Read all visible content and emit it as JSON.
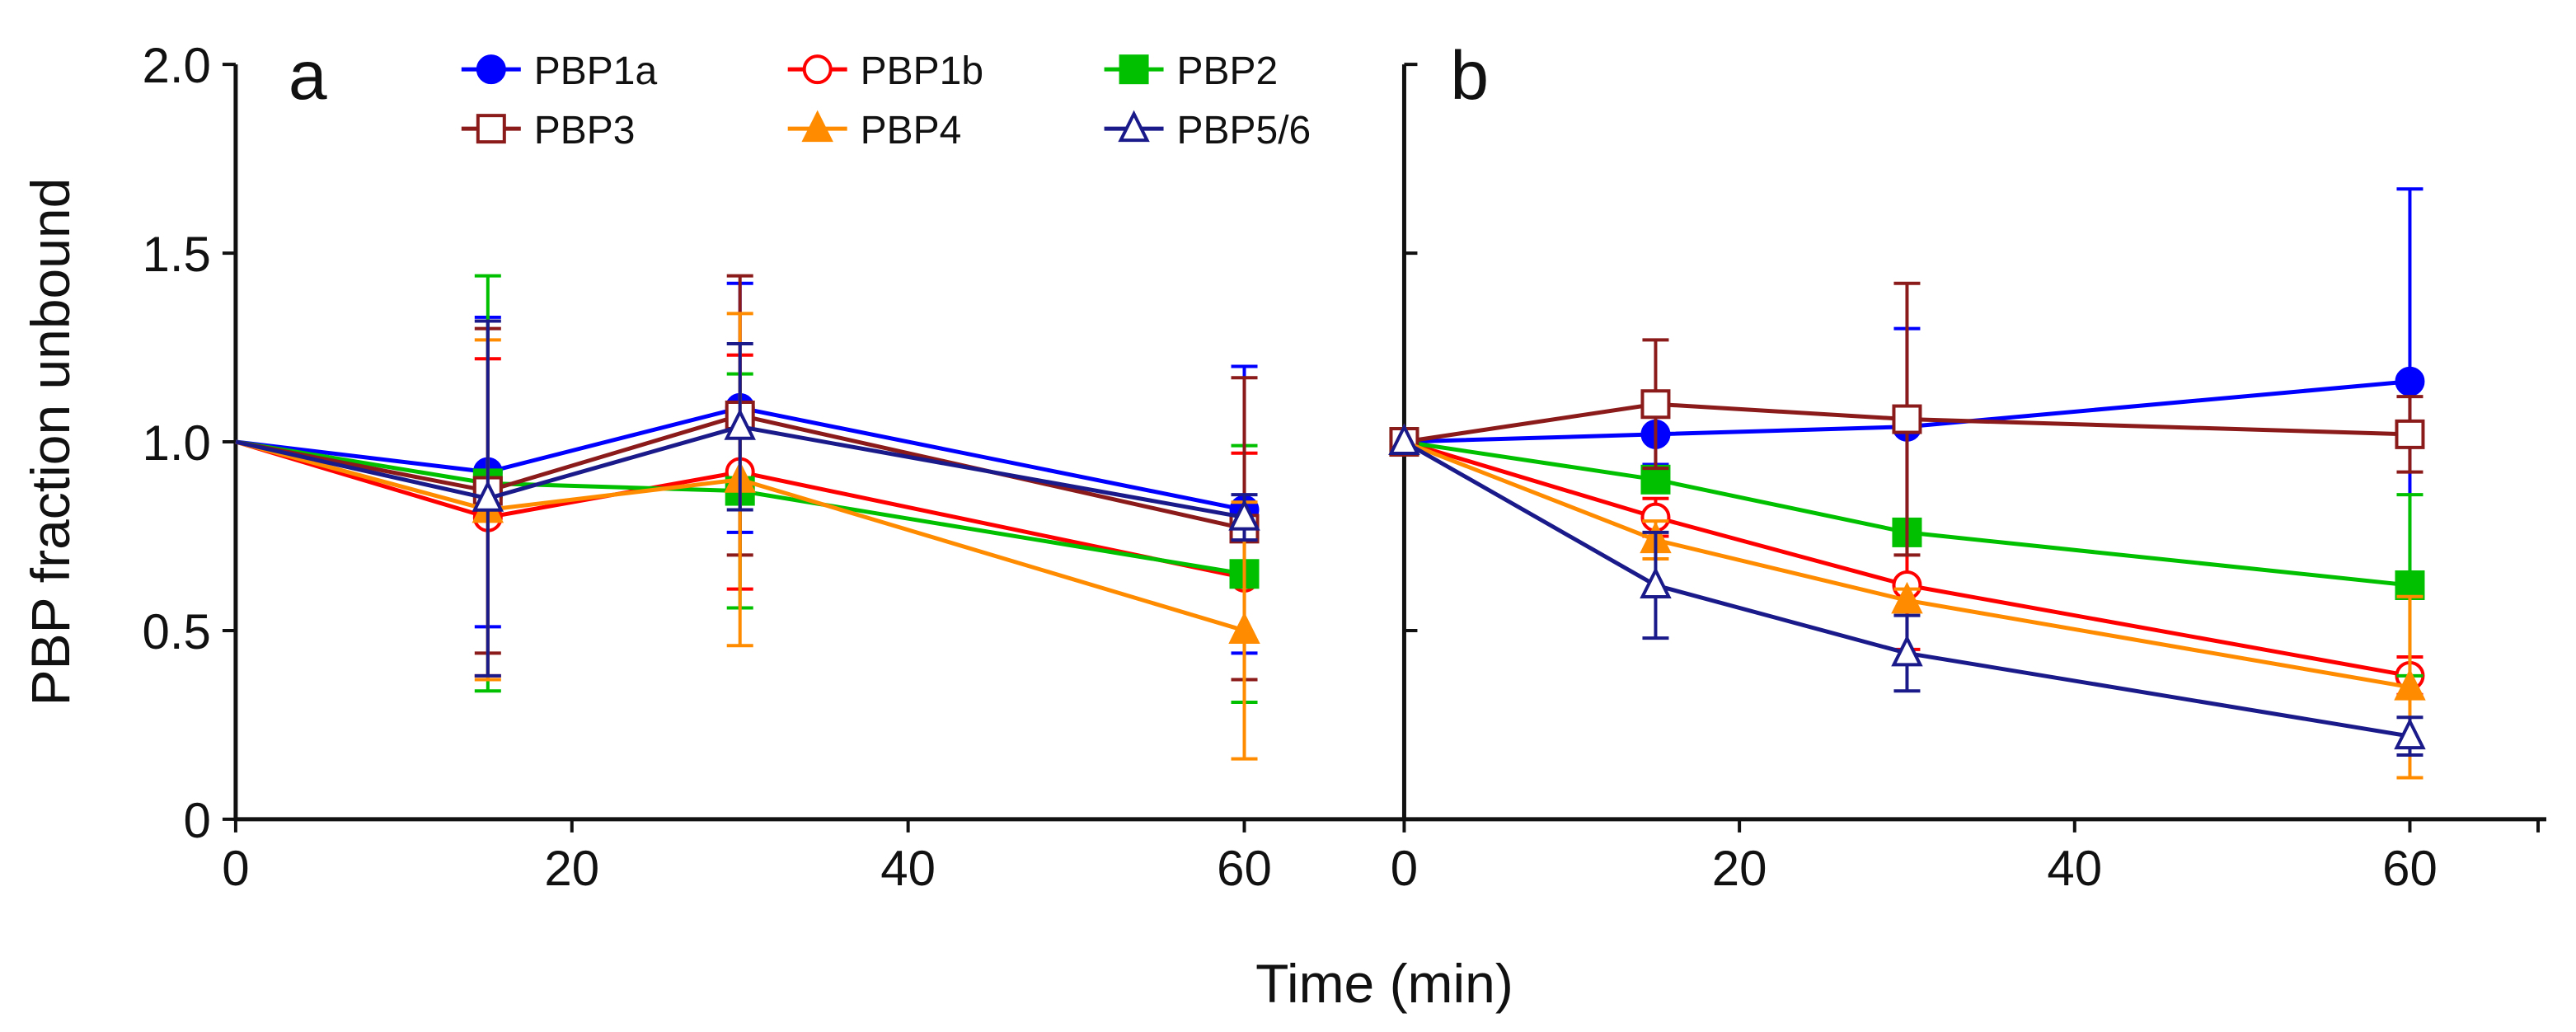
{
  "chart_data": {
    "type": "line",
    "ylabel": "PBP fraction unbound",
    "xlabel": "Time (min)",
    "ylim": [
      0,
      2.0
    ],
    "xlim": [
      0,
      70
    ],
    "yticks": [
      "0",
      "0.5",
      "1.0",
      "1.5",
      "2.0"
    ],
    "xticks": [
      "0",
      "20",
      "40",
      "60"
    ],
    "legend_placement": "top",
    "x": [
      0,
      15,
      30,
      60
    ],
    "series_style": [
      {
        "name": "PBP1a",
        "color": "#0000ff",
        "marker": "circle",
        "filled": true
      },
      {
        "name": "PBP1b",
        "color": "#ff0000",
        "marker": "circle",
        "filled": false
      },
      {
        "name": "PBP2",
        "color": "#00c000",
        "marker": "square",
        "filled": true
      },
      {
        "name": "PBP3",
        "color": "#8b1a1a",
        "marker": "square",
        "filled": false
      },
      {
        "name": "PBP4",
        "color": "#ff8c00",
        "marker": "triangle",
        "filled": true
      },
      {
        "name": "PBP5/6",
        "color": "#1a1a8b",
        "marker": "triangle",
        "filled": false
      }
    ],
    "panels": [
      {
        "label": "a",
        "series": [
          {
            "name": "PBP1a",
            "values": [
              1.0,
              0.92,
              1.09,
              0.82
            ],
            "errors": [
              0,
              0.41,
              0.33,
              0.38
            ]
          },
          {
            "name": "PBP1b",
            "values": [
              1.0,
              0.8,
              0.92,
              0.64
            ],
            "errors": [
              0,
              0.42,
              0.31,
              0.33
            ]
          },
          {
            "name": "PBP2",
            "values": [
              1.0,
              0.89,
              0.87,
              0.65
            ],
            "errors": [
              0,
              0.55,
              0.31,
              0.34
            ]
          },
          {
            "name": "PBP3",
            "values": [
              1.0,
              0.87,
              1.07,
              0.77
            ],
            "errors": [
              0,
              0.43,
              0.37,
              0.4
            ]
          },
          {
            "name": "PBP4",
            "values": [
              1.0,
              0.82,
              0.9,
              0.5
            ],
            "errors": [
              0,
              0.45,
              0.44,
              0.34
            ]
          },
          {
            "name": "PBP5/6",
            "values": [
              1.0,
              0.85,
              1.04,
              0.8
            ],
            "errors": [
              0,
              0.47,
              0.22,
              0.06
            ]
          }
        ]
      },
      {
        "label": "b",
        "series": [
          {
            "name": "PBP1a",
            "values": [
              1.0,
              1.02,
              1.04,
              1.16
            ],
            "errors": [
              0,
              0.08,
              0.26,
              0.51
            ]
          },
          {
            "name": "PBP1b",
            "values": [
              1.0,
              0.8,
              0.62,
              0.38
            ],
            "errors": [
              0,
              0.05,
              0.17,
              0.05
            ]
          },
          {
            "name": "PBP2",
            "values": [
              1.0,
              0.9,
              0.76,
              0.62
            ],
            "errors": [
              0,
              0.03,
              0.03,
              0.24
            ]
          },
          {
            "name": "PBP3",
            "values": [
              1.0,
              1.1,
              1.06,
              1.02
            ],
            "errors": [
              0,
              0.17,
              0.36,
              0.1
            ]
          },
          {
            "name": "PBP4",
            "values": [
              1.0,
              0.74,
              0.58,
              0.35
            ],
            "errors": [
              0,
              0.05,
              0.03,
              0.24
            ]
          },
          {
            "name": "PBP5/6",
            "values": [
              1.0,
              0.62,
              0.44,
              0.22
            ],
            "errors": [
              0,
              0.14,
              0.1,
              0.05
            ]
          }
        ]
      }
    ]
  }
}
